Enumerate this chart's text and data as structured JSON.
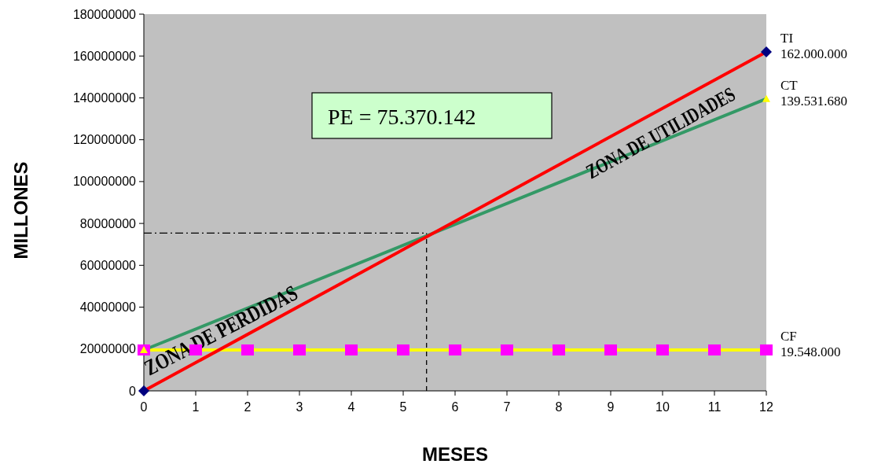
{
  "chart_data": {
    "type": "line",
    "xlabel": "MESES",
    "ylabel": "MILLONES",
    "xlim": [
      0,
      12
    ],
    "xticks": [
      0,
      1,
      2,
      3,
      4,
      5,
      6,
      7,
      8,
      9,
      10,
      11,
      12
    ],
    "ylim": [
      0,
      180000000
    ],
    "yticks": [
      0,
      20000000,
      40000000,
      60000000,
      80000000,
      100000000,
      120000000,
      140000000,
      160000000,
      180000000
    ],
    "grid": false,
    "legend": false,
    "series": [
      {
        "name": "CF",
        "color": "#ffff00",
        "marker": "square",
        "colors": [
          "#ff00ff",
          "#ff00ff",
          "#ff00ff",
          "#ff00ff",
          "#ff00ff",
          "#ff00ff",
          "#ff00ff",
          "#ff00ff",
          "#ff00ff",
          "#ff00ff",
          "#ff00ff",
          "#ff00ff",
          "#ff00ff"
        ],
        "x": [
          0,
          1,
          2,
          3,
          4,
          5,
          6,
          7,
          8,
          9,
          10,
          11,
          12
        ],
        "values": [
          19548000,
          19548000,
          19548000,
          19548000,
          19548000,
          19548000,
          19548000,
          19548000,
          19548000,
          19548000,
          19548000,
          19548000,
          19548000
        ],
        "value_labels": [
          null,
          null,
          null,
          null,
          null,
          null,
          null,
          null,
          null,
          null,
          null,
          null,
          "19.548.000"
        ]
      },
      {
        "name": "CT",
        "color": "#339966",
        "marker": "triangle",
        "colors": [
          "#ffff00",
          "#ffff00"
        ],
        "x": [
          0,
          12
        ],
        "values": [
          19548000,
          139531680
        ],
        "value_labels": [
          null,
          "139.531.680"
        ]
      },
      {
        "name": "TI",
        "color": "#ff0000",
        "marker": "diamond",
        "colors": [
          "#000080",
          "#000080"
        ],
        "x": [
          0,
          12
        ],
        "values": [
          0,
          162000000
        ],
        "value_labels": [
          null,
          "162.000.000"
        ]
      }
    ],
    "ref_lines": [
      {
        "axis": "y",
        "value": 75370142,
        "color": "#000000",
        "line_style": "dashdot"
      },
      {
        "axis": "x",
        "value": 5.45,
        "color": "#000000",
        "line_style": "dashed"
      }
    ],
    "annotations": [
      "PE = 75.370.142",
      "ZONA DE PERDIDAS",
      "ZONA DE UTILIDADES"
    ]
  }
}
